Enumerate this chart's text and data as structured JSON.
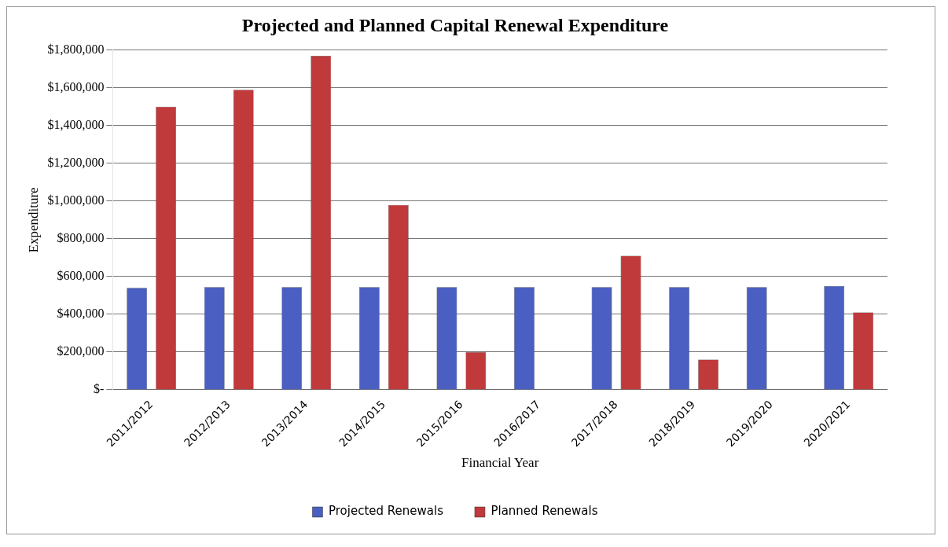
{
  "chart_data": {
    "type": "bar",
    "title": "Projected and Planned Capital Renewal Expenditure",
    "xlabel": "Financial Year",
    "ylabel": "Expenditure",
    "categories": [
      "2011/2012",
      "2012/2013",
      "2013/2014",
      "2014/2015",
      "2015/2016",
      "2016/2017",
      "2017/2018",
      "2018/2019",
      "2019/2020",
      "2020/2021"
    ],
    "series": [
      {
        "name": "Projected Renewals",
        "color": "#4a5fc1",
        "values": [
          540000,
          545000,
          545000,
          545000,
          545000,
          545000,
          545000,
          545000,
          545000,
          550000
        ]
      },
      {
        "name": "Planned Renewals",
        "color": "#c0393b",
        "values": [
          1500000,
          1590000,
          1770000,
          980000,
          200000,
          0,
          710000,
          160000,
          0,
          410000
        ]
      }
    ],
    "ylim": [
      0,
      1800000
    ],
    "yticks": [
      {
        "value": 0,
        "label": "$-"
      },
      {
        "value": 200000,
        "label": "$200,000"
      },
      {
        "value": 400000,
        "label": "$400,000"
      },
      {
        "value": 600000,
        "label": "$600,000"
      },
      {
        "value": 800000,
        "label": "$800,000"
      },
      {
        "value": 1000000,
        "label": "$1,000,000"
      },
      {
        "value": 1200000,
        "label": "$1,200,000"
      },
      {
        "value": 1400000,
        "label": "$1,400,000"
      },
      {
        "value": 1600000,
        "label": "$1,600,000"
      },
      {
        "value": 1800000,
        "label": "$1,800,000"
      }
    ],
    "grid": "y",
    "legend": "bottom"
  }
}
